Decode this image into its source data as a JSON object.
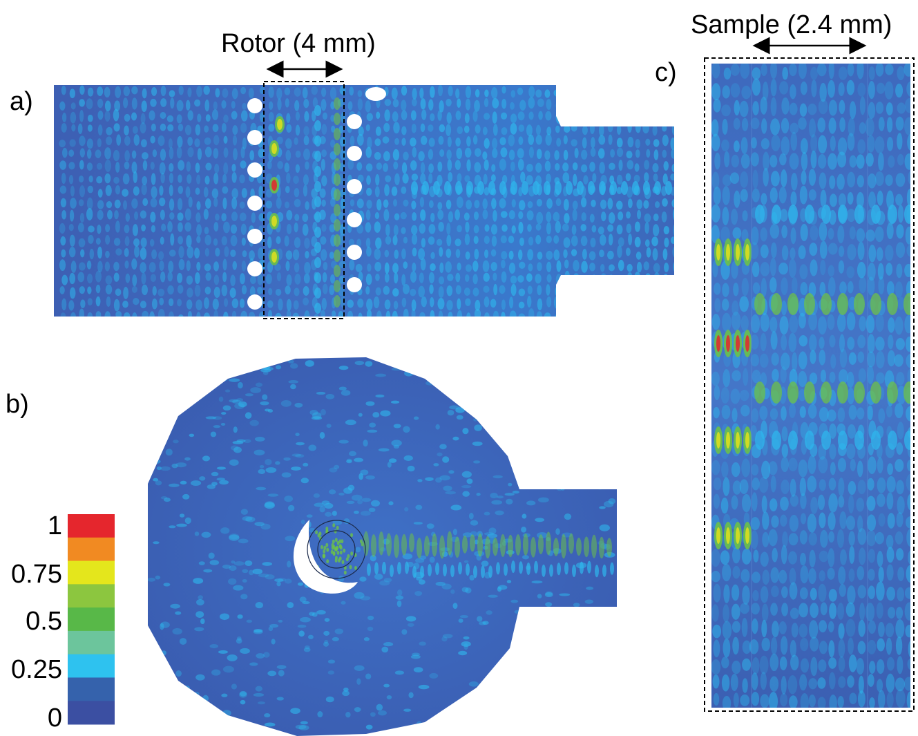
{
  "panels": {
    "a": {
      "label": "a)",
      "dimension_label": "Rotor (4 mm)"
    },
    "b": {
      "label": "b)"
    },
    "c": {
      "label": "c)",
      "dimension_label": "Sample (2.4 mm)"
    }
  },
  "colorbar": {
    "ticks": [
      "1",
      "0.75",
      "0.5",
      "0.25",
      "0"
    ],
    "colors": [
      "#e5262d",
      "#f18a22",
      "#e4e61c",
      "#8cc63f",
      "#58b848",
      "#6cc59c",
      "#2ec2ef",
      "#3562ac",
      "#3b4fa2"
    ]
  },
  "colors": {
    "field_base": "#3a63b5",
    "field_light": "#2fb6ec",
    "field_green": "#6cc04a",
    "field_yellow": "#e2e11c",
    "field_red": "#e5262d"
  }
}
